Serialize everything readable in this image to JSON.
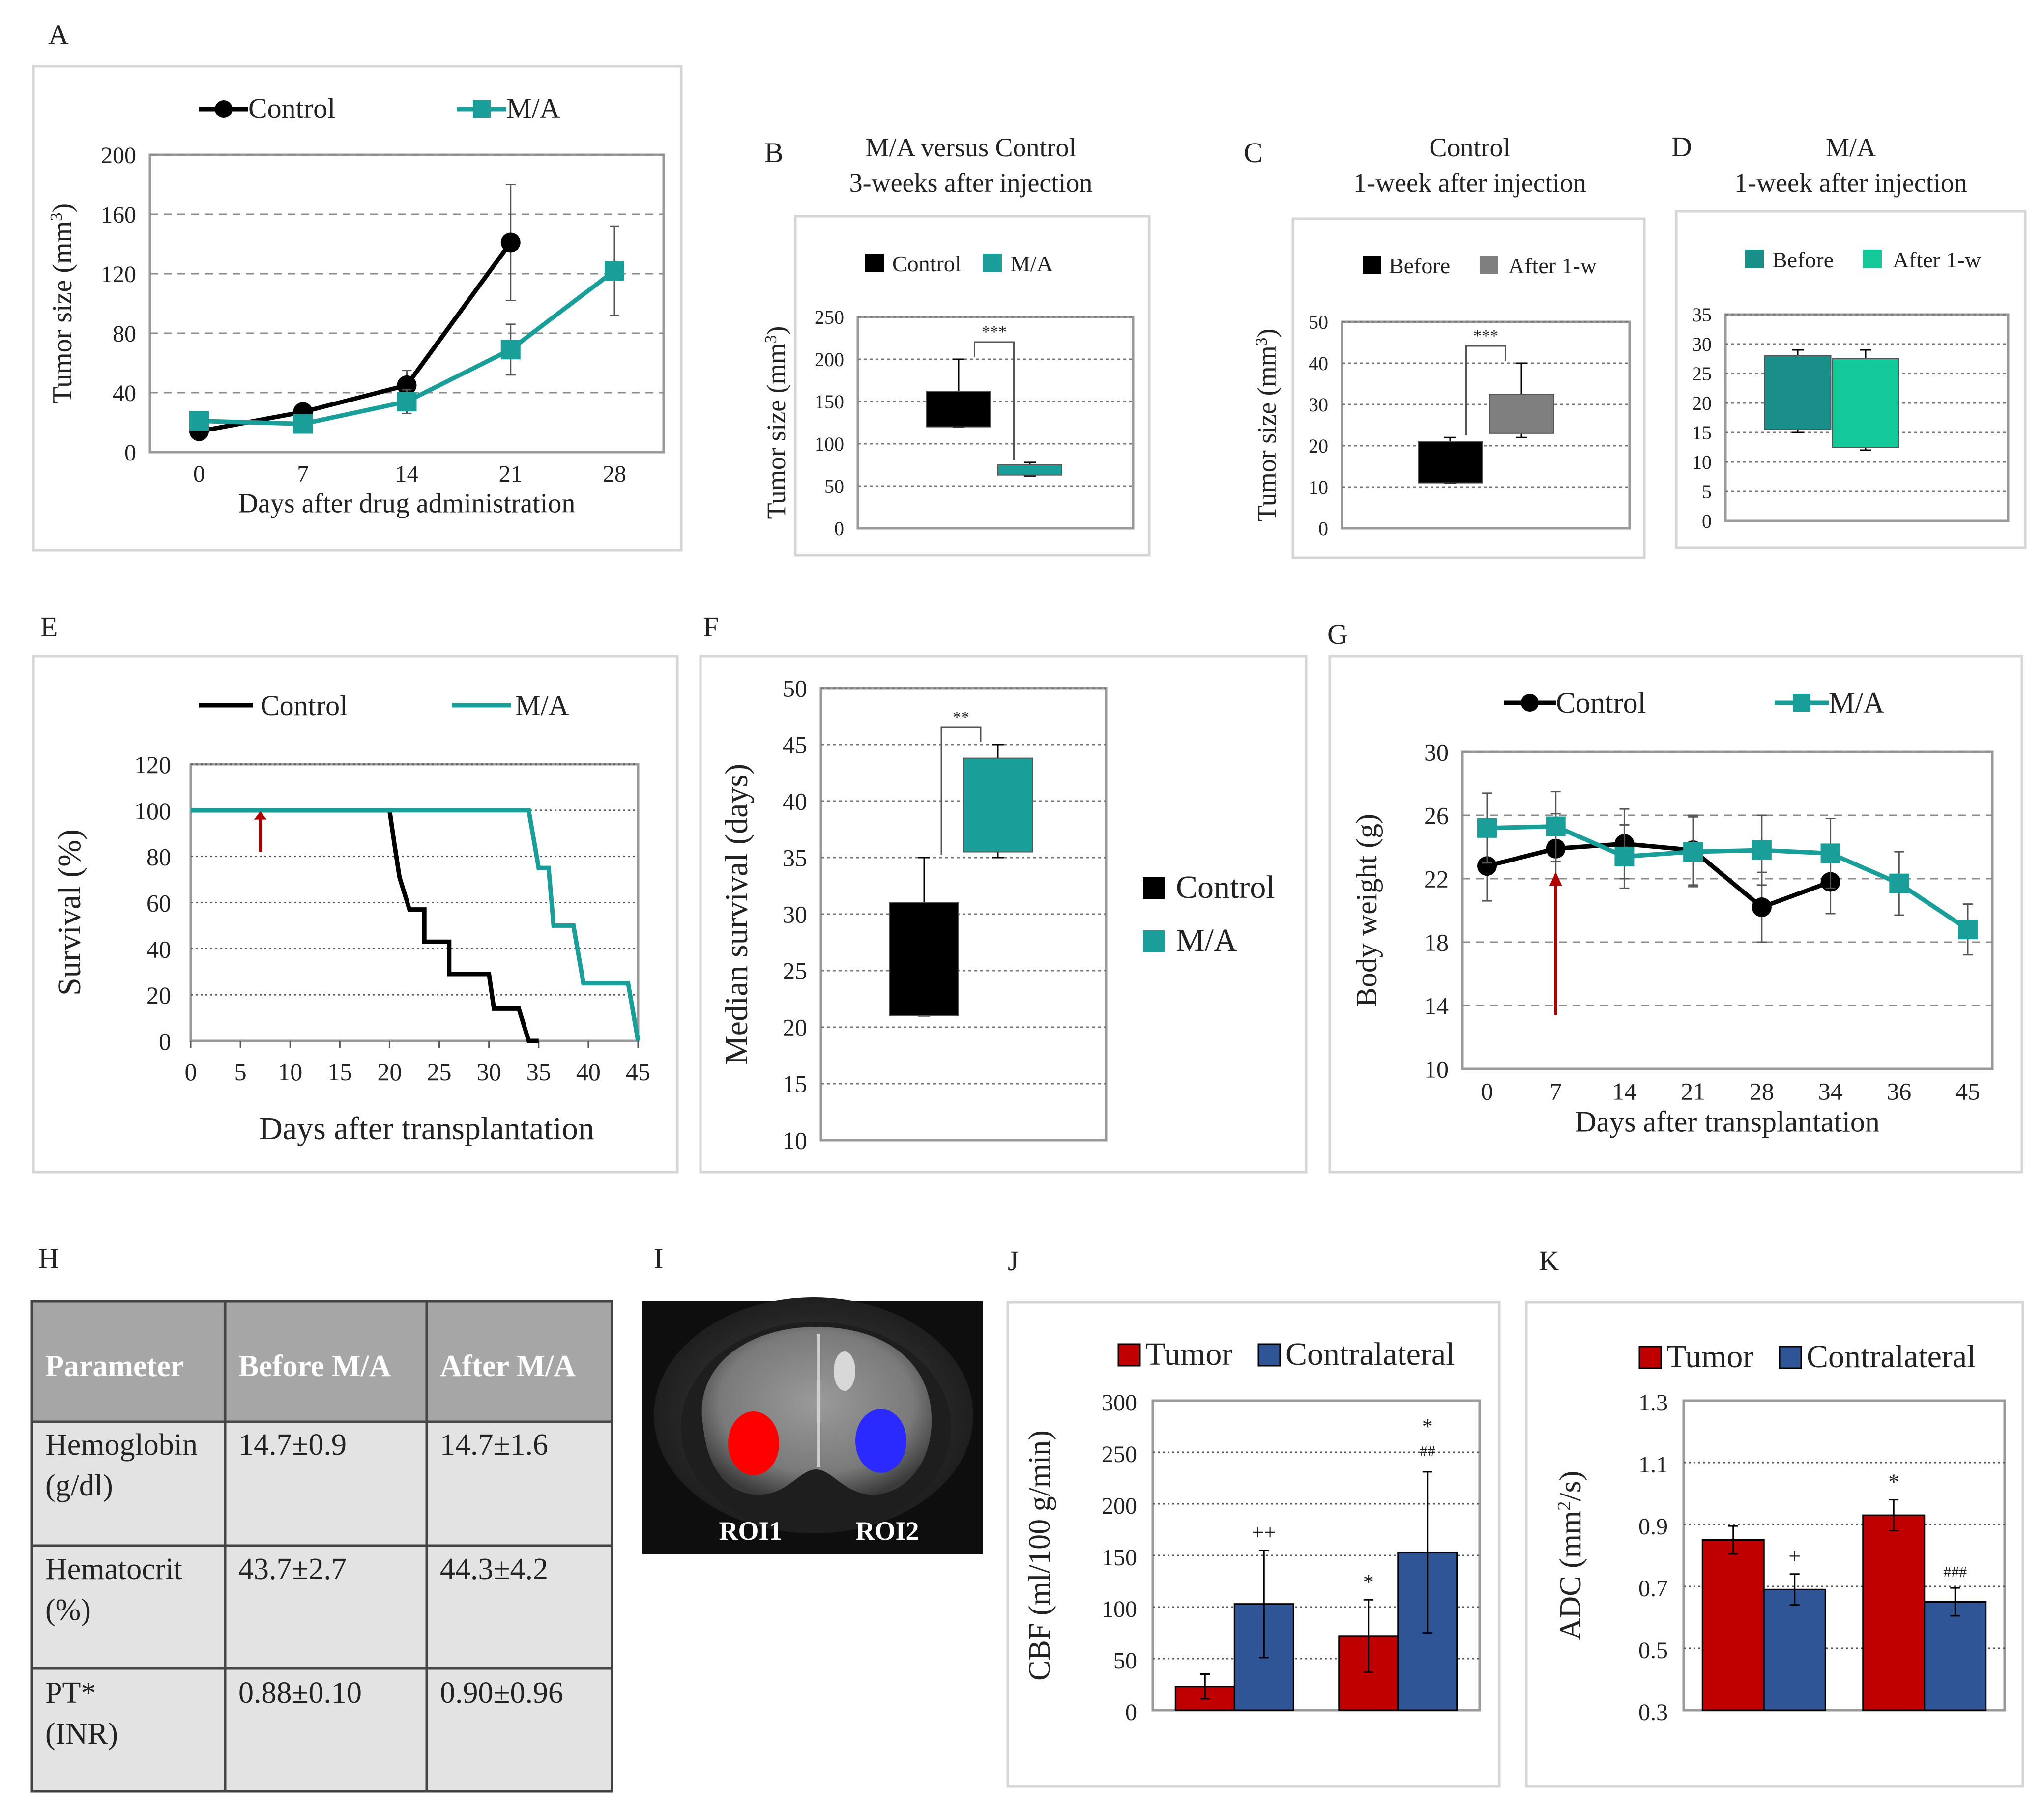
{
  "colors": {
    "control": "#000000",
    "ma": "#1a9e9a",
    "ma_light": "#13c99a",
    "grey": "#7f7f7f",
    "tumor": "#c00000",
    "contralateral": "#2f5597",
    "arrow": "#b00000",
    "table_header": "#a6a6a6",
    "table_cell": "#e3e3e3"
  },
  "panels": {
    "A": {
      "letter": "A",
      "legend": [
        "Control",
        "M/A"
      ]
    },
    "B": {
      "letter": "B",
      "title_line1": "M/A versus Control",
      "title_line2": "3-weeks after injection",
      "legend": [
        "Control",
        "M/A"
      ]
    },
    "C": {
      "letter": "C",
      "title_line1": "Control",
      "title_line2": "1-week after injection",
      "legend": [
        "Before",
        "After 1-w"
      ]
    },
    "D": {
      "letter": "D",
      "title_line1": "M/A",
      "title_line2": "1-week after injection",
      "legend": [
        "Before",
        "After 1-w"
      ]
    },
    "E": {
      "letter": "E",
      "legend": [
        "Control",
        "M/A"
      ]
    },
    "F": {
      "letter": "F",
      "legend": [
        "Control",
        "M/A"
      ]
    },
    "G": {
      "letter": "G",
      "legend": [
        "Control",
        "M/A"
      ]
    },
    "H": {
      "letter": "H"
    },
    "I": {
      "letter": "I",
      "roi1": "ROI1",
      "roi2": "ROI2"
    },
    "J": {
      "letter": "J",
      "legend": [
        "Tumor",
        "Contralateral"
      ]
    },
    "K": {
      "letter": "K",
      "legend": [
        "Tumor",
        "Contralateral"
      ]
    }
  },
  "chart_data": [
    {
      "id": "A",
      "type": "line",
      "xlabel": "Days after drug administration",
      "ylabel": "Tumor size (mm³)",
      "x": [
        0,
        7,
        14,
        21,
        28
      ],
      "xticks": [
        "0",
        "7",
        "14",
        "21",
        "28"
      ],
      "ylim": [
        0,
        200
      ],
      "yticks": [
        0,
        40,
        80,
        120,
        160,
        200
      ],
      "series": [
        {
          "name": "Control",
          "x": [
            0,
            7,
            14,
            21
          ],
          "values": [
            14,
            27,
            45,
            141
          ],
          "err": [
            0,
            0,
            10,
            39
          ]
        },
        {
          "name": "M/A",
          "x": [
            0,
            7,
            14,
            21,
            28
          ],
          "values": [
            21,
            19,
            34,
            69,
            122
          ],
          "err": [
            0,
            0,
            8,
            17,
            30
          ]
        }
      ]
    },
    {
      "id": "B",
      "type": "box",
      "ylabel": "Tumor size (mm³)",
      "ylim": [
        0,
        250
      ],
      "yticks": [
        0,
        50,
        100,
        150,
        200,
        250
      ],
      "significance": "***",
      "boxes": [
        {
          "name": "Control",
          "min": 120,
          "q1": 120,
          "q3": 162,
          "max": 200
        },
        {
          "name": "M/A",
          "min": 62,
          "q1": 63,
          "q3": 75,
          "max": 78
        }
      ]
    },
    {
      "id": "C",
      "type": "box",
      "ylabel": "Tumor size (mm³)",
      "ylim": [
        0,
        50
      ],
      "yticks": [
        0,
        10,
        20,
        30,
        40,
        50
      ],
      "significance": "***",
      "boxes": [
        {
          "name": "Before",
          "min": 11,
          "q1": 11,
          "q3": 21,
          "max": 22
        },
        {
          "name": "After 1-w",
          "min": 22,
          "q1": 23,
          "q3": 32.5,
          "max": 40
        }
      ]
    },
    {
      "id": "D",
      "type": "box",
      "ylim": [
        0,
        35
      ],
      "yticks": [
        0,
        5,
        10,
        15,
        20,
        25,
        30,
        35
      ],
      "boxes": [
        {
          "name": "Before",
          "min": 15,
          "q1": 15.5,
          "q3": 28,
          "max": 29
        },
        {
          "name": "After 1-w",
          "min": 12,
          "q1": 12.5,
          "q3": 27.5,
          "max": 29
        }
      ]
    },
    {
      "id": "E",
      "type": "step",
      "xlabel": "Days after transplantation",
      "ylabel": "Survival (%)",
      "xlim": [
        0,
        45
      ],
      "xticks": [
        0,
        5,
        10,
        15,
        20,
        25,
        30,
        35,
        40,
        45
      ],
      "ylim": [
        0,
        120
      ],
      "yticks": [
        0,
        20,
        40,
        60,
        80,
        100,
        120
      ],
      "arrow_day": 7,
      "series": [
        {
          "name": "Control",
          "points": [
            [
              0,
              100
            ],
            [
              20,
              100
            ],
            [
              20.5,
              85
            ],
            [
              21,
              71
            ],
            [
              22,
              57
            ],
            [
              23.5,
              57
            ],
            [
              23.5,
              43
            ],
            [
              26,
              43
            ],
            [
              26,
              29
            ],
            [
              30,
              29
            ],
            [
              30.5,
              14
            ],
            [
              32,
              14
            ],
            [
              33,
              14
            ],
            [
              34,
              0
            ],
            [
              35,
              0
            ]
          ]
        },
        {
          "name": "M/A",
          "points": [
            [
              0,
              100
            ],
            [
              34,
              100
            ],
            [
              35,
              75
            ],
            [
              36,
              75
            ],
            [
              36.5,
              50
            ],
            [
              38.5,
              50
            ],
            [
              39.5,
              25
            ],
            [
              44,
              25
            ],
            [
              45,
              0
            ]
          ]
        }
      ]
    },
    {
      "id": "F",
      "type": "box",
      "ylabel": "Median survival (days)",
      "ylim": [
        10,
        50
      ],
      "yticks": [
        10,
        15,
        20,
        25,
        30,
        35,
        40,
        45,
        50
      ],
      "significance": "**",
      "boxes": [
        {
          "name": "Control",
          "min": 21,
          "q1": 21,
          "q3": 31,
          "max": 35
        },
        {
          "name": "M/A",
          "min": 35,
          "q1": 35.5,
          "q3": 43.8,
          "max": 45
        }
      ]
    },
    {
      "id": "G",
      "type": "line",
      "xlabel": "Days after transplantation",
      "ylabel": "Body weight (g)",
      "xticks": [
        "0",
        "7",
        "14",
        "21",
        "28",
        "34",
        "36",
        "45"
      ],
      "ylim": [
        10,
        30
      ],
      "yticks": [
        10,
        14,
        18,
        22,
        26,
        30
      ],
      "arrow_index": 1,
      "series": [
        {
          "name": "Control",
          "idx": [
            0,
            1,
            2,
            3,
            4,
            5
          ],
          "values": [
            22.8,
            23.9,
            24.2,
            23.8,
            20.2,
            21.8
          ],
          "err": [
            2.2,
            2.2,
            2.2,
            2.2,
            2.2,
            2.0
          ]
        },
        {
          "name": "M/A",
          "idx": [
            0,
            1,
            2,
            3,
            4,
            5,
            6,
            7
          ],
          "values": [
            25.2,
            25.3,
            23.4,
            23.7,
            23.8,
            23.6,
            21.7,
            18.8
          ],
          "err": [
            2.2,
            2.2,
            2.0,
            2.2,
            2.2,
            2.2,
            2.0,
            1.6
          ]
        }
      ]
    },
    {
      "id": "J",
      "type": "bar",
      "ylabel": "CBF (ml/100 g/min)",
      "ylim": [
        0,
        300
      ],
      "yticks": [
        0,
        50,
        100,
        150,
        200,
        250,
        300
      ],
      "groups": 2,
      "series": [
        {
          "name": "Tumor",
          "values": [
            23,
            72
          ],
          "err": [
            12,
            35
          ]
        },
        {
          "name": "Contralateral",
          "values": [
            103,
            153
          ],
          "err": [
            52,
            78
          ]
        }
      ],
      "annotations": [
        {
          "group": 0,
          "series": 1,
          "text": "++"
        },
        {
          "group": 1,
          "series": 0,
          "text": "*"
        },
        {
          "group": 1,
          "series": 1,
          "text": "*",
          "text2": "##"
        }
      ]
    },
    {
      "id": "K",
      "type": "bar",
      "ylabel": "ADC (mm²/s)",
      "ylim": [
        0.3,
        1.3
      ],
      "yticks": [
        0.3,
        0.5,
        0.7,
        0.9,
        1.1,
        1.3
      ],
      "groups": 2,
      "series": [
        {
          "name": "Tumor",
          "values": [
            0.85,
            0.93
          ],
          "err": [
            0.045,
            0.05
          ]
        },
        {
          "name": "Contralateral",
          "values": [
            0.69,
            0.65
          ],
          "err": [
            0.05,
            0.045
          ]
        }
      ],
      "annotations": [
        {
          "group": 0,
          "series": 1,
          "text": "+"
        },
        {
          "group": 1,
          "series": 0,
          "text": "*"
        },
        {
          "group": 1,
          "series": 1,
          "text": "###"
        }
      ]
    }
  ],
  "table": {
    "headers": [
      "Parameter",
      "Before M/A",
      "After M/A"
    ],
    "rows": [
      {
        "param1": "Hemoglobin",
        "param2": "(g/dl)",
        "before": "14.7±0.9",
        "after": "14.7±1.6"
      },
      {
        "param1": "Hematocrit",
        "param2": "(%)",
        "before": "43.7±2.7",
        "after": "44.3±4.2"
      },
      {
        "param1": "PT*",
        "param2": "(INR)",
        "before": "0.88±0.10",
        "after": "0.90±0.96"
      }
    ]
  }
}
